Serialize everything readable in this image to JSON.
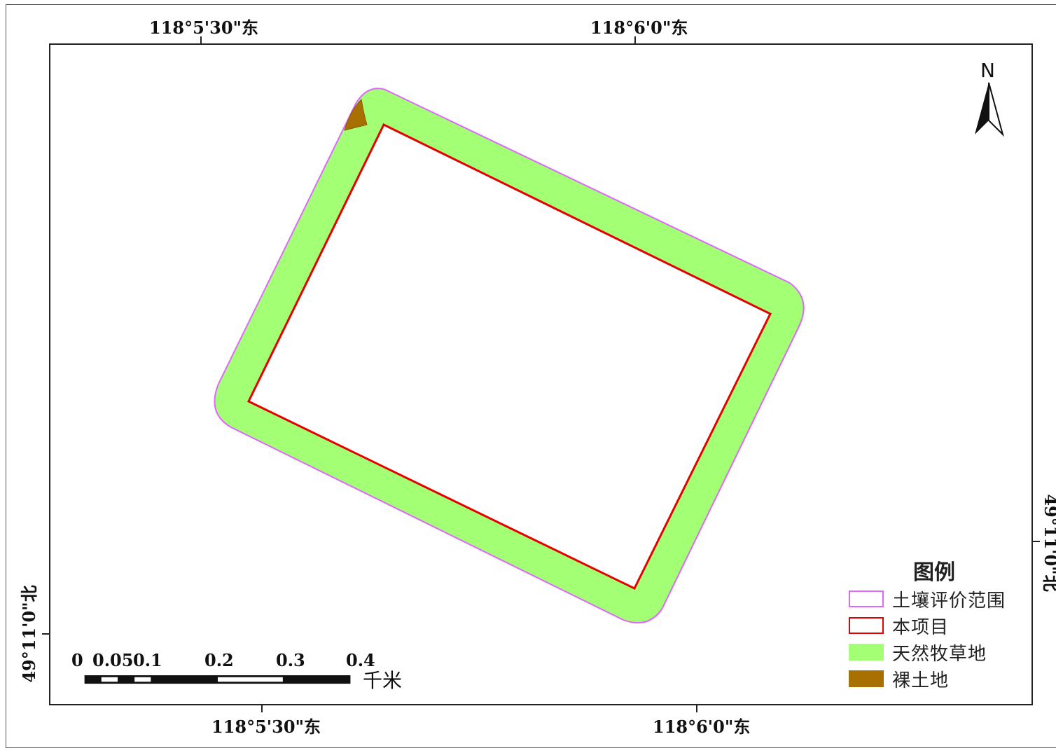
{
  "coords": {
    "top_left": "118°5'30\"东",
    "top_right": "118°6'0\"东",
    "bottom_left": "118°5'30\"东",
    "bottom_right": "118°6'0\"东",
    "left": "49°11'0\"北",
    "right": "49°11'0\"北"
  },
  "north": {
    "label": "N",
    "icon": "north-arrow-icon"
  },
  "legend": {
    "title": "图例",
    "items": [
      {
        "label": "土壤评价范围",
        "stroke": "#e066ff",
        "fill": "#ffffff"
      },
      {
        "label": "本项目",
        "stroke": "#e60000",
        "fill": "#ffffff"
      },
      {
        "label": "天然牧草地",
        "stroke": "#a3ff73",
        "fill": "#a3ff73"
      },
      {
        "label": "裸土地",
        "stroke": "#a87000",
        "fill": "#a87000"
      }
    ]
  },
  "scale_bar": {
    "labels": [
      "0",
      "0.05",
      "0.1",
      "0.2",
      "0.3",
      "0.4"
    ],
    "unit": "千米"
  },
  "colors": {
    "grassland": "#a3ff73",
    "bare_soil": "#a87000",
    "project_boundary": "#e60000",
    "evaluation_boundary": "#e066ff"
  }
}
